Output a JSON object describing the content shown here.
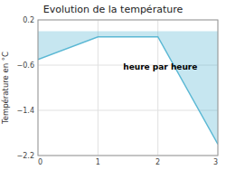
{
  "chart_data": {
    "type": "area",
    "title": "Evolution de la température",
    "y_label": "Température en °C",
    "annotation": "heure par heure",
    "x": [
      0,
      1,
      2,
      3
    ],
    "values": [
      -0.5,
      -0.1,
      -0.1,
      -2.0
    ],
    "color": "#5bb8d4",
    "xlim": [
      0,
      3
    ],
    "ylim": [
      -2.2,
      0.2
    ],
    "xticks": [
      0,
      1,
      2,
      3
    ],
    "yticks": [
      0.2,
      -0.6,
      -1.4,
      -2.2
    ],
    "grid": true
  }
}
